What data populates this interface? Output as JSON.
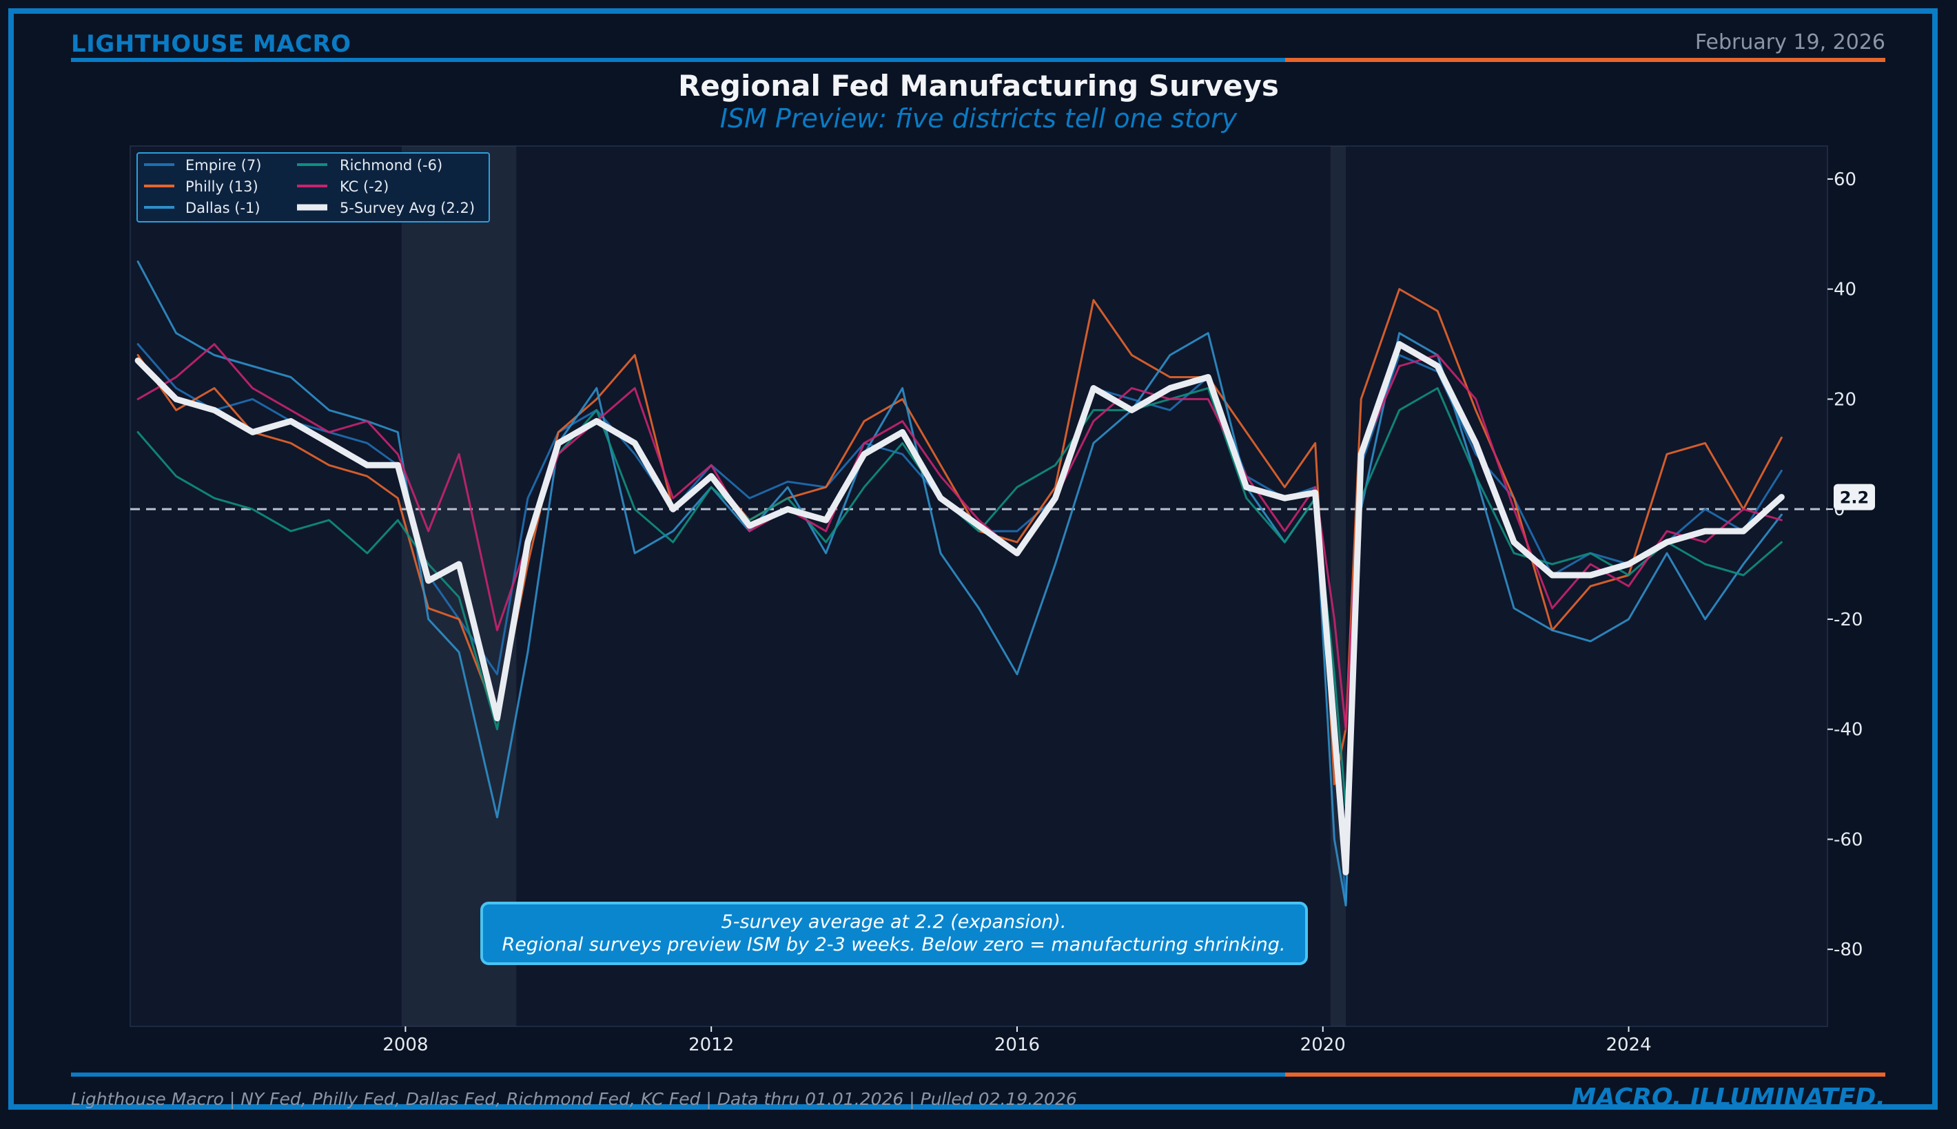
{
  "header": {
    "brand": "LIGHTHOUSE MACRO",
    "date": "February 19, 2026",
    "title": "Regional Fed Manufacturing Surveys",
    "subtitle": "ISM Preview: five districts tell one story"
  },
  "footer": {
    "source": "Lighthouse Macro | NY Fed, Philly Fed, Dallas Fed, Richmond Fed, KC Fed | Data thru 01.01.2026 | Pulled 02.19.2026",
    "tagline": "MACRO, ILLUMINATED."
  },
  "colors": {
    "background": "#0a1324",
    "plot_bg": "#0f172b",
    "accent_blue": "#0a7bc4",
    "accent_orange": "#e8652b"
  },
  "chart_data": {
    "type": "line",
    "title": "Regional Fed Manufacturing Surveys",
    "subtitle": "ISM Preview: five districts tell one story",
    "xlabel": "",
    "ylabel": "",
    "xlim": [
      2004.4,
      2026.6
    ],
    "ylim": [
      -94,
      66
    ],
    "x_ticks": [
      2008,
      2012,
      2016,
      2020,
      2024
    ],
    "y_ticks": [
      60,
      40,
      20,
      0,
      -20,
      -40,
      -60,
      -80
    ],
    "grid": false,
    "zero_line": 0,
    "legend": {
      "placement": "top-left",
      "columns": 2,
      "entries": [
        "Empire (7)",
        "Philly (13)",
        "Dallas (-1)",
        "Richmond (-6)",
        "KC (-2)",
        "5-Survey Avg (2.2)"
      ]
    },
    "recessions": [
      [
        2007.95,
        2009.45
      ],
      [
        2020.1,
        2020.3
      ]
    ],
    "last_value_label": "2.2",
    "annotation": {
      "line1": "5-survey average at 2.2 (expansion).",
      "line2": "Regional surveys preview ISM by 2-3 weeks. Below zero = manufacturing shrinking."
    },
    "series": [
      {
        "name": "Empire (7)",
        "color": "#1f6fb2",
        "width": 3,
        "x": [
          2004.5,
          2005,
          2005.5,
          2006,
          2006.5,
          2007,
          2007.5,
          2007.9,
          2008.3,
          2008.7,
          2009.2,
          2009.6,
          2010,
          2010.5,
          2011,
          2011.5,
          2012,
          2012.5,
          2013,
          2013.5,
          2014,
          2014.5,
          2015,
          2015.5,
          2016,
          2016.5,
          2017,
          2017.5,
          2018,
          2018.5,
          2019,
          2019.5,
          2019.9,
          2020.15,
          2020.3,
          2020.5,
          2021,
          2021.5,
          2022,
          2022.5,
          2023,
          2023.5,
          2024,
          2024.5,
          2025,
          2025.5,
          2026
        ],
        "y": [
          30,
          22,
          18,
          20,
          16,
          14,
          12,
          8,
          -12,
          -20,
          -30,
          2,
          14,
          18,
          10,
          0,
          8,
          2,
          5,
          4,
          12,
          10,
          2,
          -4,
          -4,
          2,
          22,
          20,
          18,
          24,
          6,
          2,
          4,
          -40,
          -72,
          8,
          28,
          25,
          10,
          2,
          -12,
          -8,
          -10,
          -6,
          0,
          -4,
          7
        ]
      },
      {
        "name": "Philly (13)",
        "color": "#e8652b",
        "width": 3,
        "x": [
          2004.5,
          2005,
          2005.5,
          2006,
          2006.5,
          2007,
          2007.5,
          2007.9,
          2008.3,
          2008.7,
          2009.2,
          2009.6,
          2010,
          2010.5,
          2011,
          2011.5,
          2012,
          2012.5,
          2013,
          2013.5,
          2014,
          2014.5,
          2015,
          2015.5,
          2016,
          2016.5,
          2017,
          2017.5,
          2018,
          2018.5,
          2019,
          2019.5,
          2019.9,
          2020.15,
          2020.3,
          2020.5,
          2021,
          2021.5,
          2022,
          2022.5,
          2023,
          2023.5,
          2024,
          2024.5,
          2025,
          2025.5,
          2026
        ],
        "y": [
          28,
          18,
          22,
          14,
          12,
          8,
          6,
          2,
          -18,
          -20,
          -38,
          -10,
          14,
          20,
          28,
          0,
          6,
          -2,
          2,
          4,
          16,
          20,
          8,
          -4,
          -6,
          4,
          38,
          28,
          24,
          24,
          14,
          4,
          12,
          -50,
          -40,
          20,
          40,
          36,
          18,
          2,
          -22,
          -14,
          -12,
          10,
          12,
          0,
          13
        ]
      },
      {
        "name": "Dallas (-1)",
        "color": "#2f8fc9",
        "width": 3,
        "x": [
          2004.5,
          2005,
          2005.5,
          2006,
          2006.5,
          2007,
          2007.5,
          2007.9,
          2008.3,
          2008.7,
          2009.2,
          2009.6,
          2010,
          2010.5,
          2011,
          2011.5,
          2012,
          2012.5,
          2013,
          2013.5,
          2014,
          2014.5,
          2015,
          2015.5,
          2016,
          2016.5,
          2017,
          2017.5,
          2018,
          2018.5,
          2019,
          2019.5,
          2019.9,
          2020.15,
          2020.3,
          2020.5,
          2021,
          2021.5,
          2022,
          2022.5,
          2023,
          2023.5,
          2024,
          2024.5,
          2025,
          2025.5,
          2026
        ],
        "y": [
          45,
          32,
          28,
          26,
          24,
          18,
          16,
          14,
          -20,
          -26,
          -56,
          -26,
          12,
          22,
          -8,
          -4,
          4,
          -4,
          4,
          -8,
          10,
          22,
          -8,
          -18,
          -30,
          -10,
          12,
          18,
          28,
          32,
          4,
          -6,
          2,
          -60,
          -72,
          0,
          32,
          28,
          6,
          -18,
          -22,
          -24,
          -20,
          -8,
          -20,
          -10,
          -1
        ]
      },
      {
        "name": "Richmond (-6)",
        "color": "#0f8f7e",
        "width": 3,
        "x": [
          2004.5,
          2005,
          2005.5,
          2006,
          2006.5,
          2007,
          2007.5,
          2007.9,
          2008.3,
          2008.7,
          2009.2,
          2009.6,
          2010,
          2010.5,
          2011,
          2011.5,
          2012,
          2012.5,
          2013,
          2013.5,
          2014,
          2014.5,
          2015,
          2015.5,
          2016,
          2016.5,
          2017,
          2017.5,
          2018,
          2018.5,
          2019,
          2019.5,
          2019.9,
          2020.15,
          2020.3,
          2020.5,
          2021,
          2021.5,
          2022,
          2022.5,
          2023,
          2023.5,
          2024,
          2024.5,
          2025,
          2025.5,
          2026
        ],
        "y": [
          14,
          6,
          2,
          0,
          -4,
          -2,
          -8,
          -2,
          -10,
          -16,
          -40,
          -6,
          10,
          18,
          0,
          -6,
          4,
          -2,
          2,
          -6,
          4,
          12,
          2,
          -4,
          4,
          8,
          18,
          18,
          20,
          22,
          2,
          -6,
          2,
          -30,
          -54,
          2,
          18,
          22,
          6,
          -8,
          -10,
          -8,
          -12,
          -6,
          -10,
          -12,
          -6
        ]
      },
      {
        "name": "KC (-2)",
        "color": "#c8236f",
        "width": 3,
        "x": [
          2004.5,
          2005,
          2005.5,
          2006,
          2006.5,
          2007,
          2007.5,
          2007.9,
          2008.3,
          2008.7,
          2009.2,
          2009.6,
          2010,
          2010.5,
          2011,
          2011.5,
          2012,
          2012.5,
          2013,
          2013.5,
          2014,
          2014.5,
          2015,
          2015.5,
          2016,
          2016.5,
          2017,
          2017.5,
          2018,
          2018.5,
          2019,
          2019.5,
          2019.9,
          2020.15,
          2020.3,
          2020.5,
          2021,
          2021.5,
          2022,
          2022.5,
          2023,
          2023.5,
          2024,
          2024.5,
          2025,
          2025.5,
          2026
        ],
        "y": [
          20,
          24,
          30,
          22,
          18,
          14,
          16,
          10,
          -4,
          10,
          -22,
          -6,
          10,
          16,
          22,
          2,
          8,
          -4,
          0,
          -4,
          12,
          16,
          6,
          -2,
          -8,
          2,
          16,
          22,
          20,
          20,
          6,
          -4,
          4,
          -20,
          -40,
          10,
          26,
          28,
          20,
          0,
          -18,
          -10,
          -14,
          -4,
          -6,
          0,
          -2
        ]
      },
      {
        "name": "5-Survey Avg (2.2)",
        "color": "#e9edf2",
        "width": 9,
        "x": [
          2004.5,
          2005,
          2005.5,
          2006,
          2006.5,
          2007,
          2007.5,
          2007.9,
          2008.3,
          2008.7,
          2009.2,
          2009.6,
          2010,
          2010.5,
          2011,
          2011.5,
          2012,
          2012.5,
          2013,
          2013.5,
          2014,
          2014.5,
          2015,
          2015.5,
          2016,
          2016.5,
          2017,
          2017.5,
          2018,
          2018.5,
          2019,
          2019.5,
          2019.9,
          2020.15,
          2020.3,
          2020.5,
          2021,
          2021.5,
          2022,
          2022.5,
          2023,
          2023.5,
          2024,
          2024.5,
          2025,
          2025.5,
          2026
        ],
        "y": [
          27,
          20,
          18,
          14,
          16,
          12,
          8,
          8,
          -13,
          -10,
          -38,
          -6,
          12,
          16,
          12,
          0,
          6,
          -3,
          0,
          -2,
          10,
          14,
          2,
          -3,
          -8,
          2,
          22,
          18,
          22,
          24,
          4,
          2,
          3,
          -40,
          -66,
          10,
          30,
          26,
          12,
          -6,
          -12,
          -12,
          -10,
          -6,
          -4,
          -4,
          2.2
        ]
      }
    ]
  }
}
